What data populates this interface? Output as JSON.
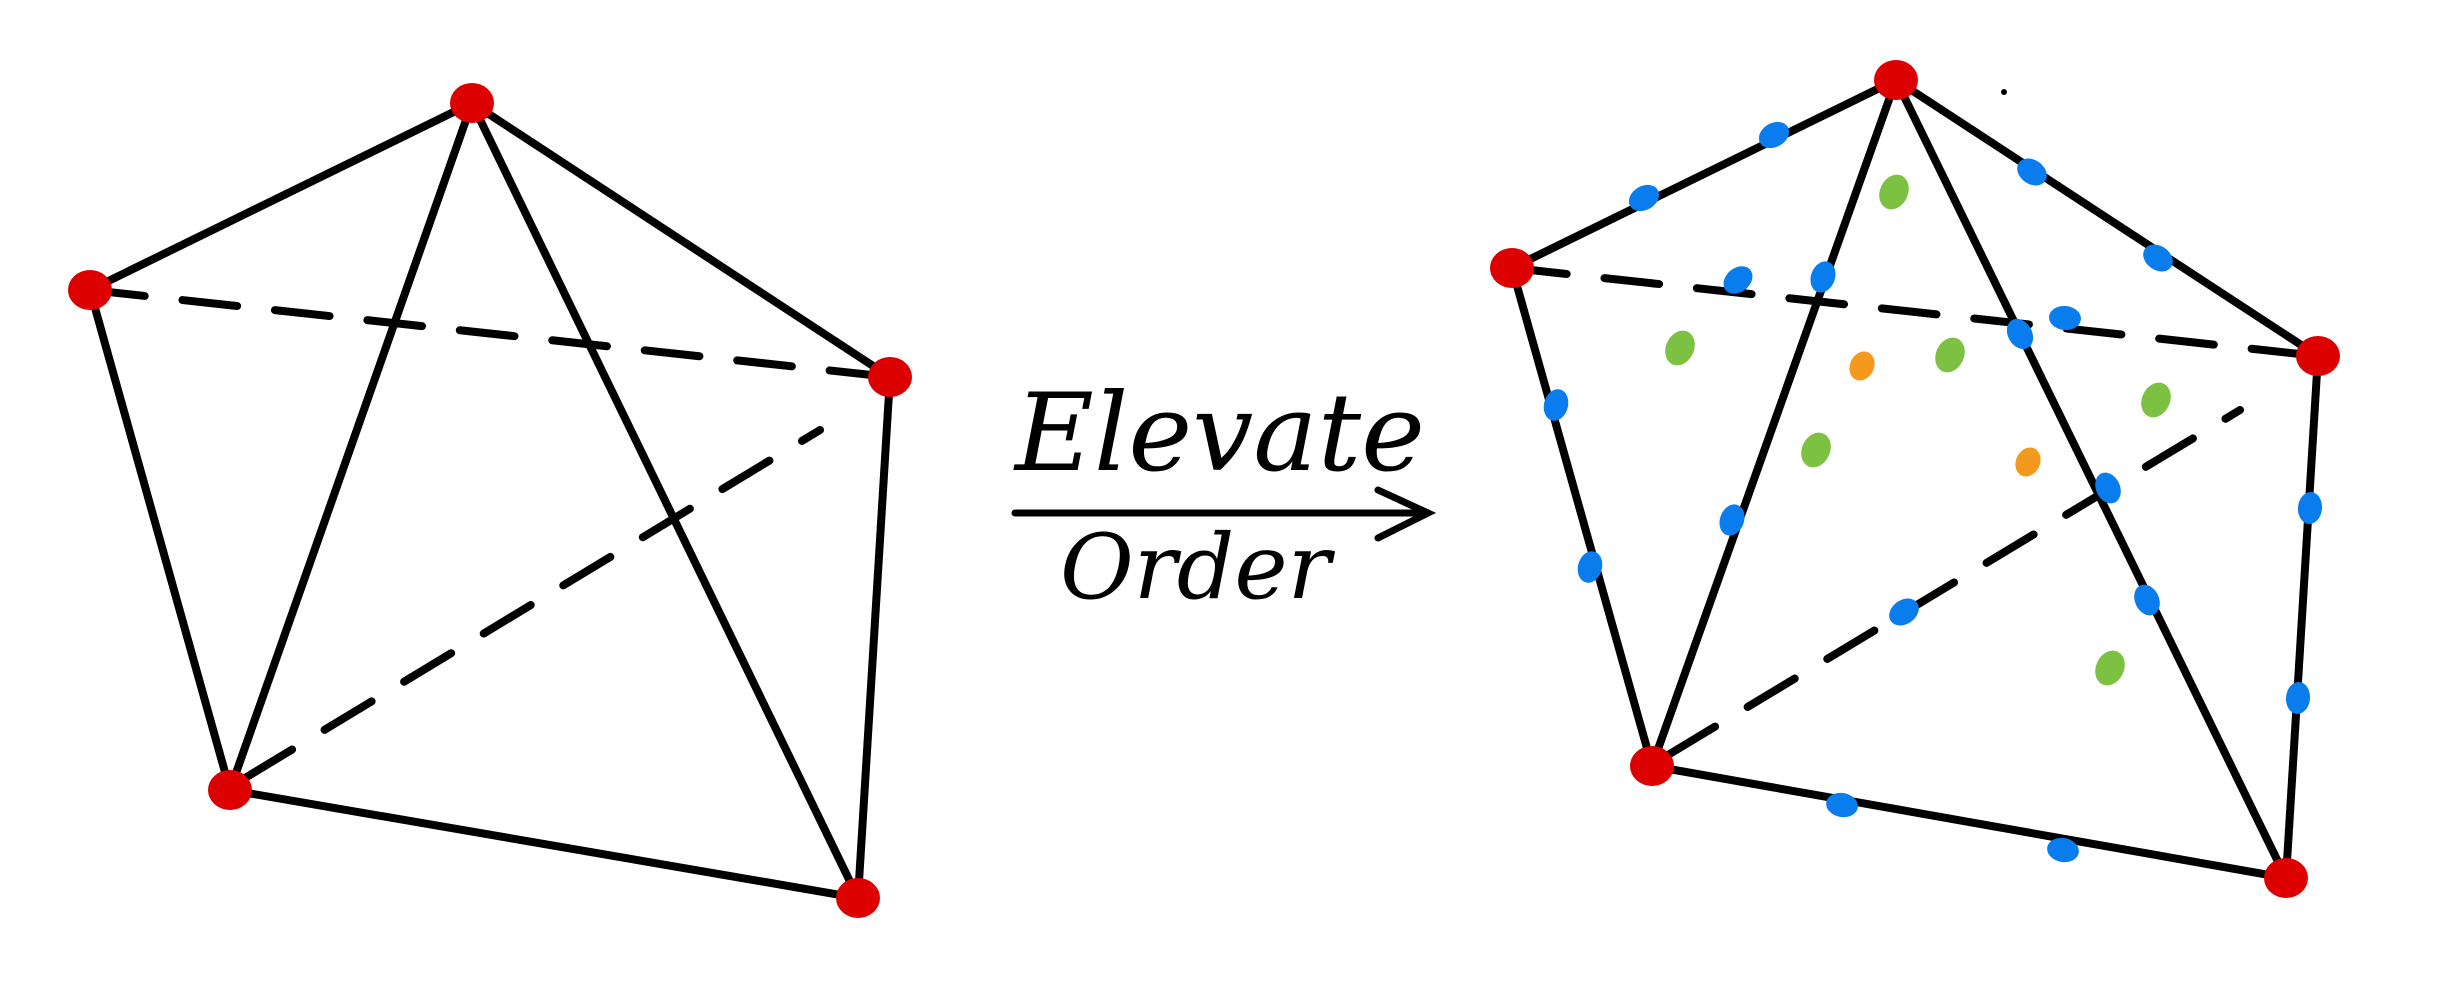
{
  "annotation": {
    "top_text": "Elevate",
    "bottom_text": "Order"
  },
  "colors": {
    "edge": "#000000",
    "vertex_node": "#dd0000",
    "edge_node": "#0a7dee",
    "face_node": "#7cc142",
    "interior_node": "#f39a1e"
  }
}
